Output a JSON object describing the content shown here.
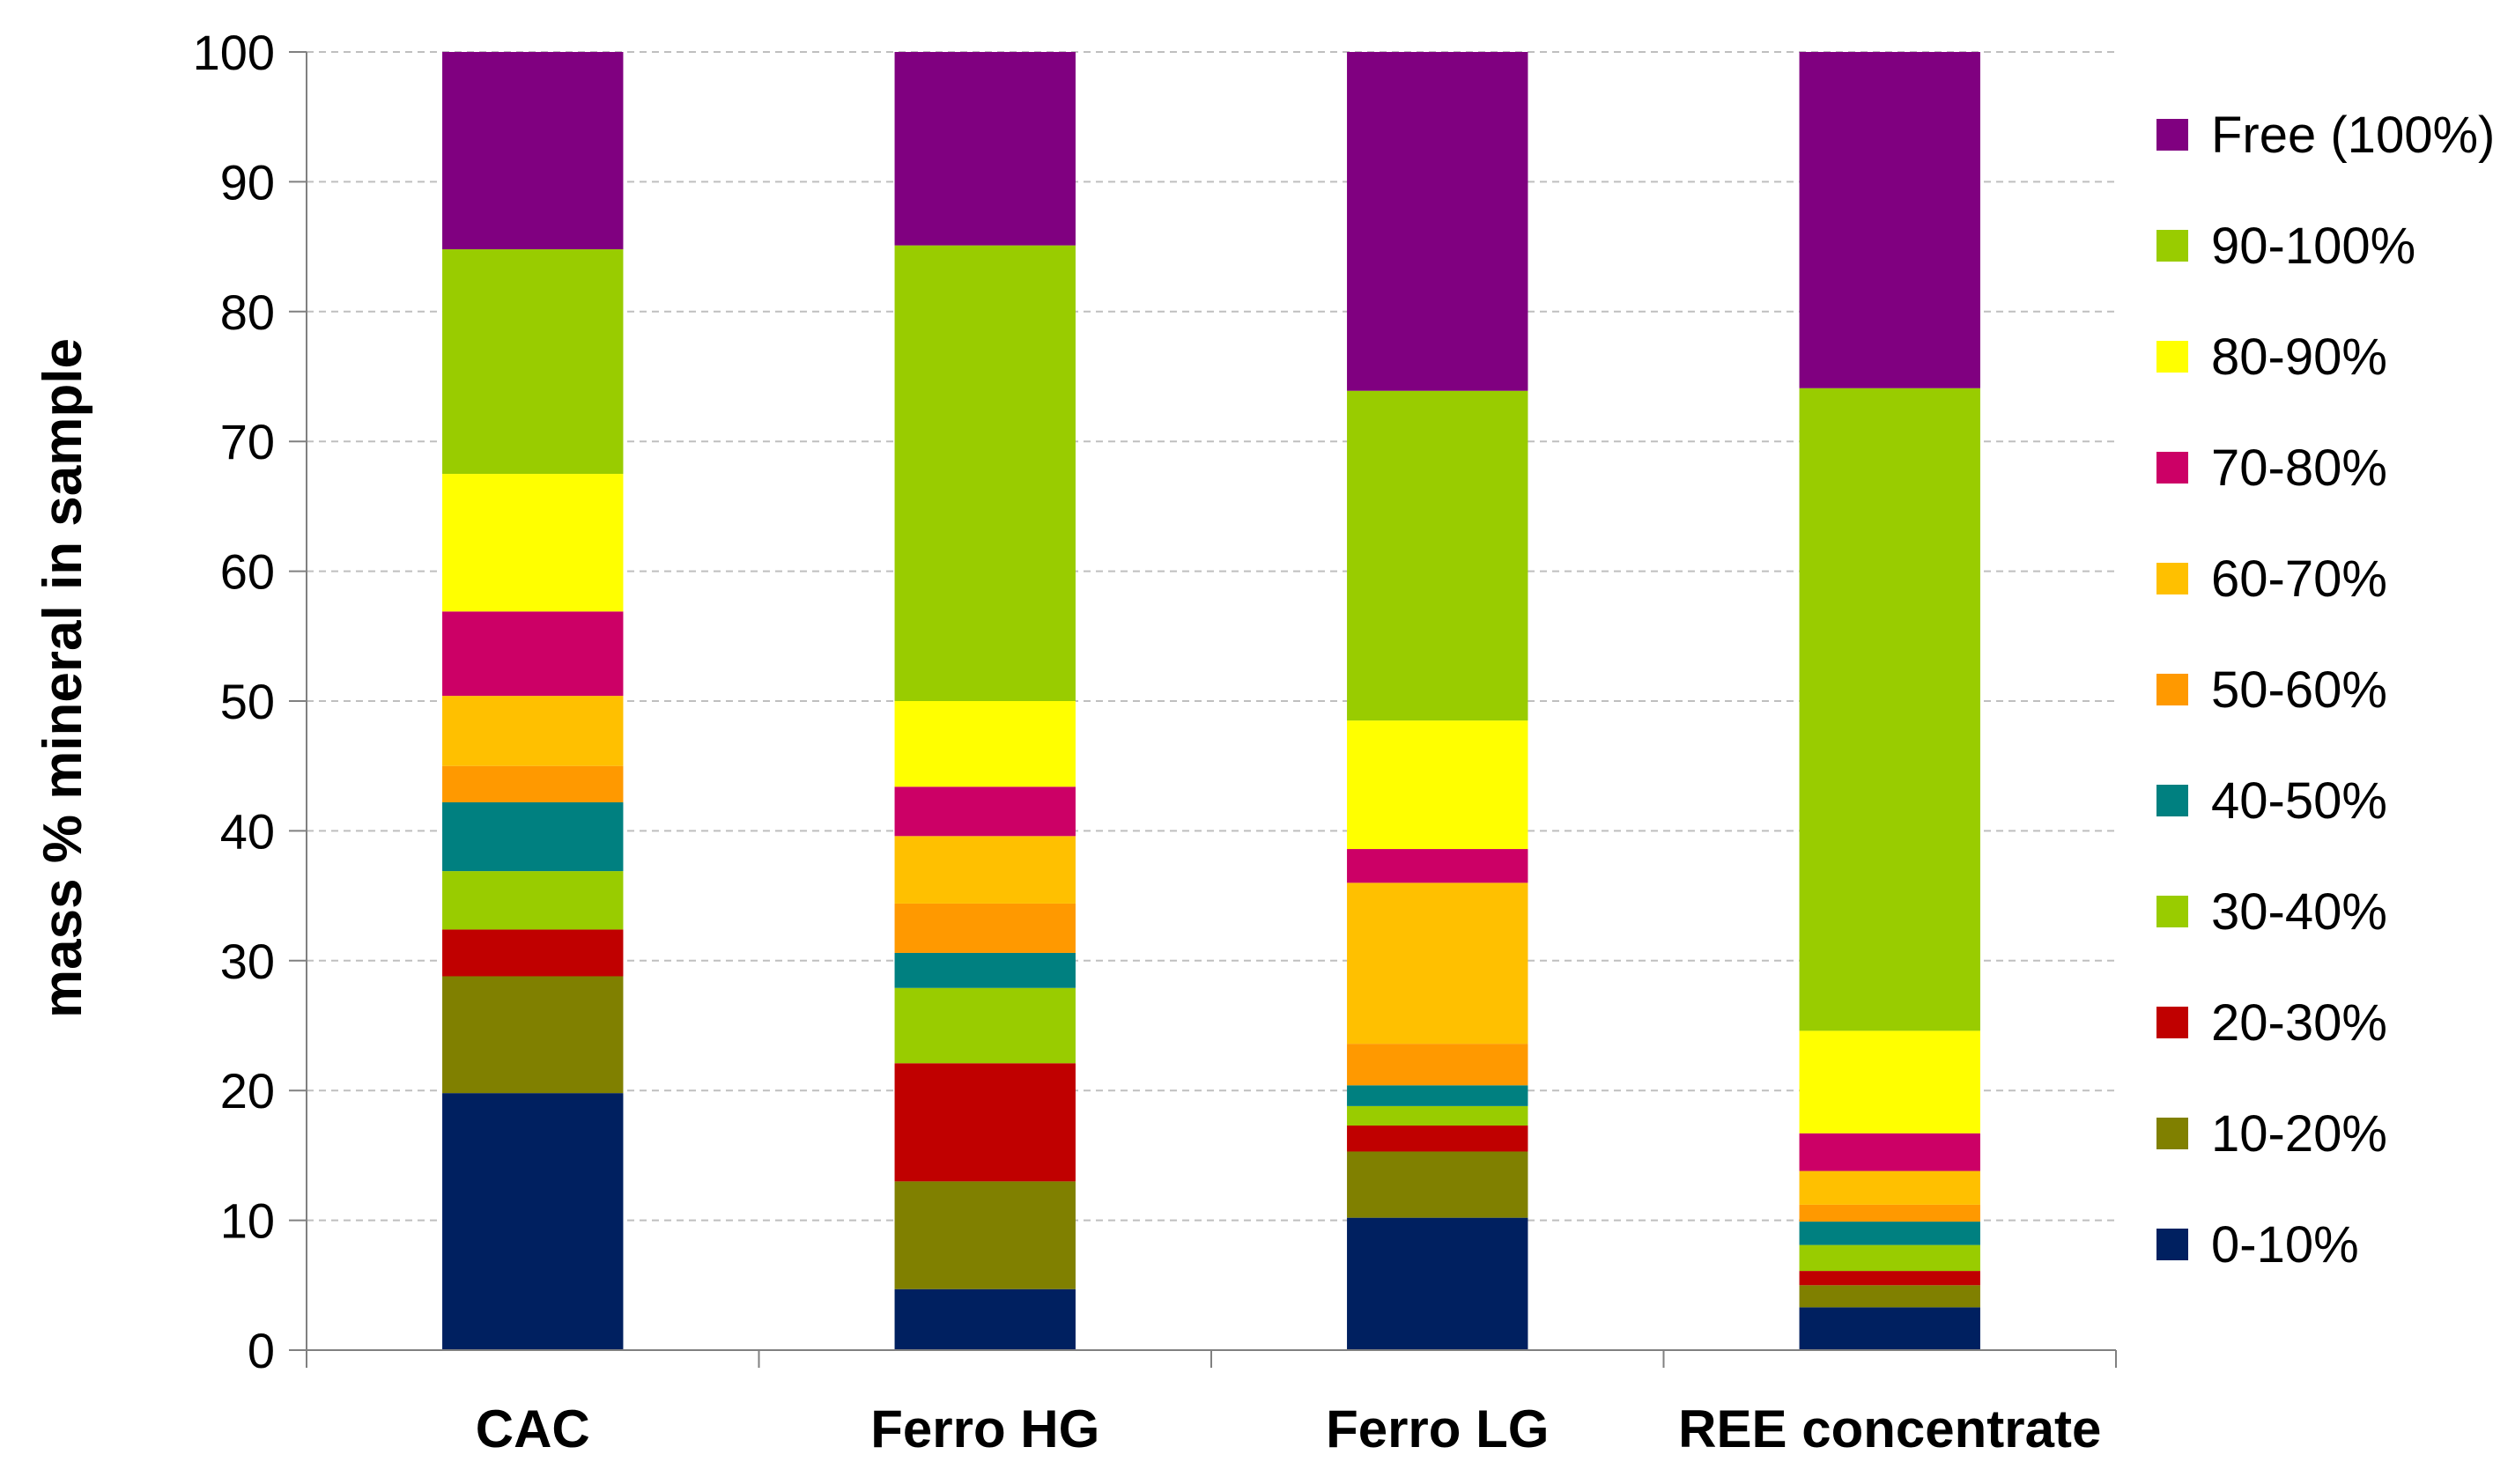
{
  "chart_data": {
    "type": "bar",
    "stacked": true,
    "title": "",
    "xlabel": "",
    "ylabel": "mass % mineral in sample",
    "ylim": [
      0,
      100
    ],
    "yticks": [
      0,
      10,
      20,
      30,
      40,
      50,
      60,
      70,
      80,
      90,
      100
    ],
    "grid": true,
    "legend_position": "right",
    "categories": [
      "CAC",
      "Ferro HG",
      "Ferro LG",
      "REE concentrate"
    ],
    "series": [
      {
        "name": "0-10%",
        "color": "#002060",
        "values": [
          19.8,
          4.7,
          10.2,
          3.3
        ]
      },
      {
        "name": "10-20%",
        "color": "#808000",
        "values": [
          9.0,
          8.3,
          5.1,
          1.7
        ]
      },
      {
        "name": "20-30%",
        "color": "#C00000",
        "values": [
          3.6,
          9.1,
          2.0,
          1.1
        ]
      },
      {
        "name": "30-40%",
        "color": "#99CC00",
        "values": [
          4.5,
          5.8,
          1.5,
          2.0
        ]
      },
      {
        "name": "40-50%",
        "color": "#008080",
        "values": [
          5.3,
          2.7,
          1.6,
          1.8
        ]
      },
      {
        "name": "50-60%",
        "color": "#FF9900",
        "values": [
          2.8,
          3.8,
          3.2,
          1.3
        ]
      },
      {
        "name": "60-70%",
        "color": "#FFC000",
        "values": [
          5.4,
          5.2,
          12.4,
          2.6
        ]
      },
      {
        "name": "70-80%",
        "color": "#CC0066",
        "values": [
          6.5,
          3.8,
          2.6,
          2.9
        ]
      },
      {
        "name": "80-90%",
        "color": "#FFFF00",
        "values": [
          10.6,
          6.6,
          9.9,
          7.9
        ]
      },
      {
        "name": "90-100%",
        "color": "#99CC00",
        "values": [
          17.3,
          35.1,
          25.4,
          49.5
        ]
      },
      {
        "name": "Free (100%)",
        "color": "#800080",
        "values": [
          15.2,
          14.9,
          26.1,
          25.9
        ]
      }
    ]
  }
}
